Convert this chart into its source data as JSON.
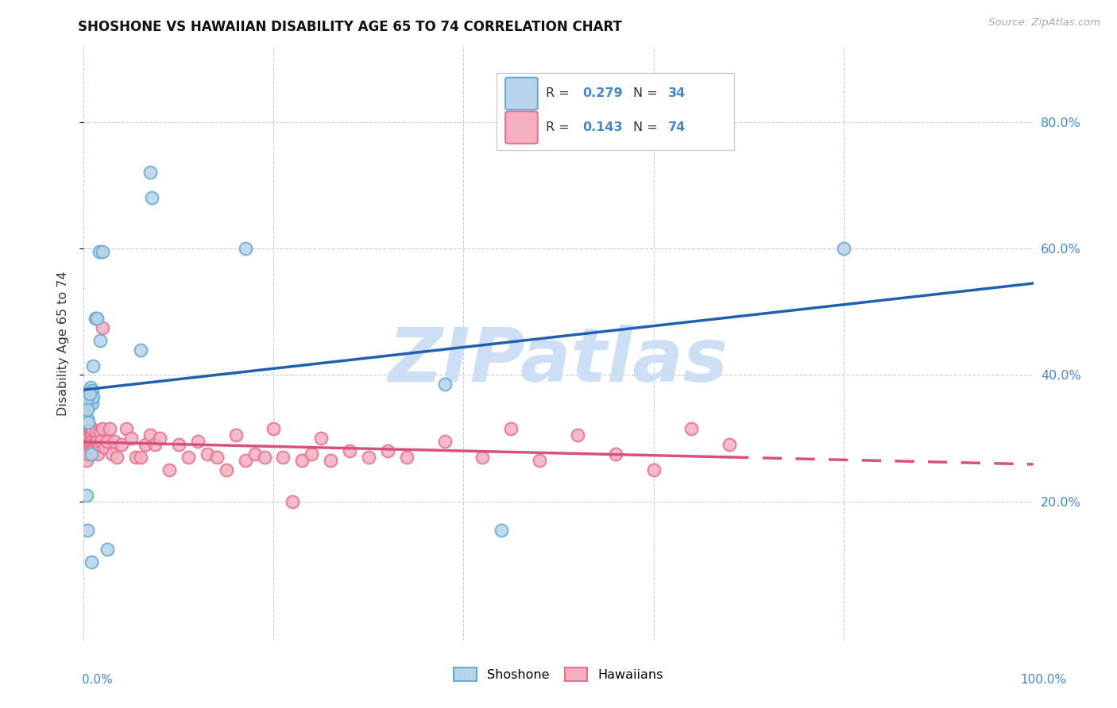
{
  "title": "SHOSHONE VS HAWAIIAN DISABILITY AGE 65 TO 74 CORRELATION CHART",
  "source": "Source: ZipAtlas.com",
  "ylabel": "Disability Age 65 to 74",
  "ytick_values": [
    0.2,
    0.4,
    0.6,
    0.8
  ],
  "xlim": [
    0.0,
    1.0
  ],
  "ylim": [
    -0.02,
    0.92
  ],
  "legend_r1": "0.279",
  "legend_n1": "34",
  "legend_r2": "0.143",
  "legend_n2": "74",
  "shoshone_edge_color": "#6aaad4",
  "shoshone_face_color": "#b8d4ea",
  "hawaiian_edge_color": "#e87090",
  "hawaiian_face_color": "#f4b0c0",
  "trend_blue": "#2060b0",
  "trend_pink": "#d85080",
  "watermark": "ZIPatlas",
  "watermark_color": "#ccdff5",
  "background_color": "#ffffff",
  "grid_color": "#cccccc",
  "right_axis_color": "#4488cc",
  "title_color": "#111111",
  "source_color": "#aaaaaa",
  "shoshone_x": [
    0.002,
    0.003,
    0.004,
    0.004,
    0.005,
    0.005,
    0.005,
    0.006,
    0.006,
    0.007,
    0.007,
    0.008,
    0.008,
    0.009,
    0.009,
    0.01,
    0.01,
    0.012,
    0.014,
    0.016,
    0.017,
    0.02,
    0.025,
    0.06,
    0.07,
    0.072,
    0.17,
    0.38,
    0.44,
    0.8,
    0.003,
    0.004,
    0.006,
    0.008
  ],
  "shoshone_y": [
    0.325,
    0.21,
    0.155,
    0.33,
    0.325,
    0.35,
    0.355,
    0.36,
    0.375,
    0.38,
    0.36,
    0.36,
    0.275,
    0.375,
    0.355,
    0.365,
    0.415,
    0.49,
    0.49,
    0.595,
    0.455,
    0.595,
    0.125,
    0.44,
    0.72,
    0.68,
    0.6,
    0.385,
    0.155,
    0.6,
    0.36,
    0.345,
    0.37,
    0.105
  ],
  "hawaiian_x": [
    0.001,
    0.002,
    0.002,
    0.003,
    0.003,
    0.004,
    0.004,
    0.005,
    0.005,
    0.006,
    0.006,
    0.007,
    0.007,
    0.008,
    0.008,
    0.009,
    0.009,
    0.01,
    0.011,
    0.012,
    0.013,
    0.014,
    0.015,
    0.016,
    0.017,
    0.018,
    0.02,
    0.022,
    0.025,
    0.027,
    0.03,
    0.032,
    0.035,
    0.04,
    0.045,
    0.05,
    0.055,
    0.06,
    0.065,
    0.07,
    0.075,
    0.08,
    0.09,
    0.1,
    0.11,
    0.12,
    0.13,
    0.14,
    0.15,
    0.16,
    0.17,
    0.18,
    0.19,
    0.2,
    0.21,
    0.22,
    0.23,
    0.24,
    0.25,
    0.26,
    0.28,
    0.3,
    0.32,
    0.34,
    0.38,
    0.42,
    0.45,
    0.48,
    0.52,
    0.56,
    0.6,
    0.64,
    0.68,
    0.02
  ],
  "hawaiian_y": [
    0.3,
    0.285,
    0.31,
    0.305,
    0.265,
    0.3,
    0.285,
    0.275,
    0.3,
    0.29,
    0.315,
    0.295,
    0.3,
    0.31,
    0.285,
    0.295,
    0.315,
    0.285,
    0.285,
    0.295,
    0.31,
    0.295,
    0.275,
    0.29,
    0.31,
    0.295,
    0.315,
    0.285,
    0.295,
    0.315,
    0.275,
    0.295,
    0.27,
    0.29,
    0.315,
    0.3,
    0.27,
    0.27,
    0.29,
    0.305,
    0.29,
    0.3,
    0.25,
    0.29,
    0.27,
    0.295,
    0.275,
    0.27,
    0.25,
    0.305,
    0.265,
    0.275,
    0.27,
    0.315,
    0.27,
    0.2,
    0.265,
    0.275,
    0.3,
    0.265,
    0.28,
    0.27,
    0.28,
    0.27,
    0.295,
    0.27,
    0.315,
    0.265,
    0.305,
    0.275,
    0.25,
    0.315,
    0.29,
    0.475
  ]
}
